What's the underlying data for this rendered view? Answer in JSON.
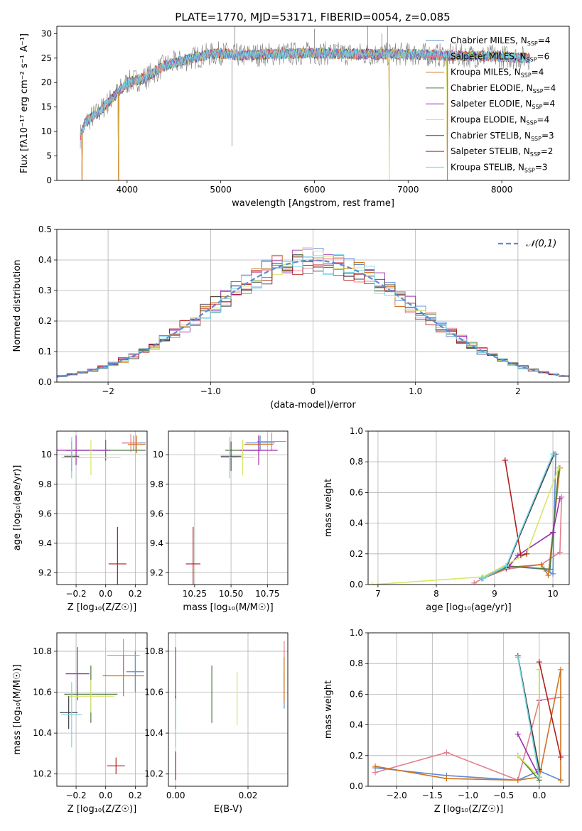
{
  "title": "PLATE=1770, MJD=53171, FIBERID=0054, z=0.085",
  "colors": {
    "Chabrier MILES": "#5b8bd6",
    "Salpeter MILES": "#e37f8c",
    "Kroupa MILES": "#d1731f",
    "Chabrier ELODIE": "#4f7a43",
    "Salpeter ELODIE": "#9b2fae",
    "Kroupa ELODIE": "#d8e66a",
    "Chabrier STELIB": "#404040",
    "Salpeter STELIB": "#b01e1e",
    "Kroupa STELIB": "#76d6e6",
    "grid": "#b0b0b0",
    "norm_curve": "#5b8bd6"
  },
  "chart_data": [
    {
      "id": "spectrum",
      "type": "line",
      "title": "PLATE=1770, MJD=53171, FIBERID=0054, z=0.085",
      "xlabel": "wavelength [Angstrom, rest frame]",
      "ylabel": "Flux [fλ10⁻¹⁷ erg cm⁻² s⁻¹ A⁻¹]",
      "xlim": [
        3250,
        8720
      ],
      "ylim": [
        0,
        31.5
      ],
      "xticks": [
        4000,
        5000,
        6000,
        7000,
        8000
      ],
      "yticks": [
        0,
        5,
        10,
        15,
        20,
        25,
        30
      ],
      "grid": false,
      "legend_position": "right",
      "legend": [
        {
          "model": "Chabrier MILES",
          "label": "Chabrier MILES, N",
          "sub": "SSP",
          "suffix": "=4"
        },
        {
          "model": "Salpeter MILES",
          "label": "Salpeter MILES, N",
          "sub": "SSP",
          "suffix": "=6"
        },
        {
          "model": "Kroupa MILES",
          "label": "Kroupa MILES, N",
          "sub": "SSP",
          "suffix": "=4"
        },
        {
          "model": "Chabrier ELODIE",
          "label": "Chabrier ELODIE, N",
          "sub": "SSP",
          "suffix": "=4"
        },
        {
          "model": "Salpeter ELODIE",
          "label": "Salpeter ELODIE, N",
          "sub": "SSP",
          "suffix": "=4"
        },
        {
          "model": "Kroupa ELODIE",
          "label": "Kroupa ELODIE, N",
          "sub": "SSP",
          "suffix": "=4"
        },
        {
          "model": "Chabrier STELIB",
          "label": "Chabrier STELIB, N",
          "sub": "SSP",
          "suffix": "=3"
        },
        {
          "model": "Salpeter STELIB",
          "label": "Salpeter STELIB, N",
          "sub": "SSP",
          "suffix": "=2"
        },
        {
          "model": "Kroupa STELIB",
          "label": "Kroupa STELIB, N",
          "sub": "SSP",
          "suffix": "=3"
        }
      ],
      "continuum": [
        [
          3500,
          9
        ],
        [
          3560,
          12
        ],
        [
          3700,
          14
        ],
        [
          3800,
          16
        ],
        [
          3900,
          18
        ],
        [
          4000,
          20
        ],
        [
          4200,
          21
        ],
        [
          4400,
          23.5
        ],
        [
          4600,
          24.5
        ],
        [
          4800,
          25.5
        ],
        [
          5000,
          26
        ],
        [
          5200,
          25.5
        ],
        [
          5500,
          25.8
        ],
        [
          6000,
          26
        ],
        [
          6500,
          25.8
        ],
        [
          7000,
          25.8
        ],
        [
          7500,
          25.5
        ],
        [
          8000,
          25.3
        ],
        [
          8300,
          25
        ]
      ],
      "drops": [
        [
          3520,
          0
        ],
        [
          3910,
          0
        ],
        [
          6800,
          0
        ],
        [
          7420,
          0
        ]
      ],
      "spikes": [
        [
          5150,
          31.5
        ],
        [
          5120,
          7
        ],
        [
          6000,
          31
        ],
        [
          6570,
          31.5
        ],
        [
          6720,
          30
        ],
        [
          6780,
          31.5
        ]
      ]
    },
    {
      "id": "residuals",
      "type": "histogram",
      "xlabel": "(data-model)/error",
      "ylabel": "Normed distribution",
      "xlim": [
        -2.5,
        2.5
      ],
      "ylim": [
        0,
        0.5
      ],
      "xticks": [
        -2,
        -1,
        0,
        1,
        2
      ],
      "yticks": [
        0.0,
        0.1,
        0.2,
        0.3,
        0.4,
        0.5
      ],
      "grid": true,
      "legend_position": "top-right",
      "curve_label": "𝒩(0,1)",
      "bin_width": 0.1
    },
    {
      "id": "age_vs_Z",
      "type": "errorbar",
      "xlabel": "Z [log₁₀(Z/Z☉)]",
      "ylabel": "age  [log₁₀(age/yr)]",
      "xlim": [
        -0.33,
        0.28
      ],
      "ylim": [
        9.12,
        10.16
      ],
      "xticks": [
        -0.2,
        0.0,
        0.2
      ],
      "xticklabels": [
        "−0.2",
        "0.0",
        "0.2"
      ],
      "yticks": [
        9.2,
        9.4,
        9.6,
        9.8,
        10.0
      ],
      "grid": true,
      "points": [
        {
          "model": "Chabrier MILES",
          "x": 0.19,
          "xerr": 0.08,
          "y": 10.08,
          "yerr": 0.05
        },
        {
          "model": "Salpeter MILES",
          "x": 0.17,
          "xerr": 0.06,
          "y": 10.08,
          "yerr": 0.06
        },
        {
          "model": "Kroupa MILES",
          "x": 0.21,
          "xerr": 0.06,
          "y": 10.07,
          "yerr": 0.06
        },
        {
          "model": "Chabrier ELODIE",
          "x": 0.0,
          "xerr": 0.27,
          "y": 10.03,
          "yerr": 0.07
        },
        {
          "model": "Salpeter ELODIE",
          "x": -0.2,
          "xerr": 0.23,
          "y": 10.03,
          "yerr": 0.1
        },
        {
          "model": "Kroupa ELODIE",
          "x": -0.1,
          "xerr": 0.2,
          "y": 9.98,
          "yerr": 0.12
        },
        {
          "model": "Chabrier STELIB",
          "x": -0.23,
          "xerr": 0.05,
          "y": 9.99,
          "yerr": 0.1
        },
        {
          "model": "Salpeter STELIB",
          "x": 0.08,
          "xerr": 0.06,
          "y": 9.26,
          "yerr": 0.25
        },
        {
          "model": "Kroupa STELIB",
          "x": -0.23,
          "xerr": 0.06,
          "y": 9.98,
          "yerr": 0.14
        }
      ]
    },
    {
      "id": "age_vs_mass",
      "type": "errorbar",
      "xlabel": "mass [log₁₀(M/M☉)]",
      "ylabel": "",
      "xlim": [
        10.07,
        10.89
      ],
      "ylim": [
        9.12,
        10.16
      ],
      "xticks": [
        10.25,
        10.5,
        10.75
      ],
      "xticklabels": [
        "10.25",
        "10.50",
        "10.75"
      ],
      "yticks": [
        9.2,
        9.4,
        9.6,
        9.8,
        10.0
      ],
      "grid": true,
      "points": [
        {
          "model": "Chabrier MILES",
          "x": 10.7,
          "xerr": 0.1,
          "y": 10.08,
          "yerr": 0.05
        },
        {
          "model": "Salpeter MILES",
          "x": 10.78,
          "xerr": 0.1,
          "y": 10.09,
          "yerr": 0.06
        },
        {
          "model": "Kroupa MILES",
          "x": 10.69,
          "xerr": 0.1,
          "y": 10.07,
          "yerr": 0.06
        },
        {
          "model": "Chabrier ELODIE",
          "x": 10.58,
          "xerr": 0.12,
          "y": 10.03,
          "yerr": 0.07
        },
        {
          "model": "Salpeter ELODIE",
          "x": 10.69,
          "xerr": 0.13,
          "y": 10.03,
          "yerr": 0.1
        },
        {
          "model": "Kroupa ELODIE",
          "x": 10.58,
          "xerr": 0.08,
          "y": 9.98,
          "yerr": 0.12
        },
        {
          "model": "Chabrier STELIB",
          "x": 10.5,
          "xerr": 0.07,
          "y": 9.99,
          "yerr": 0.1
        },
        {
          "model": "Salpeter STELIB",
          "x": 10.24,
          "xerr": 0.05,
          "y": 9.26,
          "yerr": 0.25
        },
        {
          "model": "Kroupa STELIB",
          "x": 10.49,
          "xerr": 0.06,
          "y": 9.98,
          "yerr": 0.14
        }
      ]
    },
    {
      "id": "weight_vs_age",
      "type": "line",
      "xlabel": "age  [log₁₀(age/yr)]",
      "ylabel": "mass weight",
      "xlim": [
        6.83,
        10.28
      ],
      "ylim": [
        0,
        1
      ],
      "xticks": [
        7,
        8,
        9,
        10
      ],
      "yticks": [
        0.0,
        0.2,
        0.4,
        0.6,
        0.8,
        1.0
      ],
      "grid": true,
      "series": [
        {
          "model": "Chabrier MILES",
          "x": [
            8.78,
            9.2,
            9.85,
            10.0,
            10.05
          ],
          "y": [
            0.04,
            0.12,
            0.1,
            0.07,
            0.85
          ]
        },
        {
          "model": "Salpeter MILES",
          "x": [
            8.65,
            8.8,
            9.2,
            9.8,
            10.12,
            10.15
          ],
          "y": [
            0.01,
            0.04,
            0.1,
            0.13,
            0.21,
            0.57
          ]
        },
        {
          "model": "Kroupa MILES",
          "x": [
            8.8,
            9.2,
            9.8,
            9.92,
            10.12
          ],
          "y": [
            0.04,
            0.11,
            0.13,
            0.06,
            0.76
          ]
        },
        {
          "model": "Chabrier ELODIE",
          "x": [
            8.8,
            9.25,
            9.95,
            10.1
          ],
          "y": [
            0.04,
            0.12,
            0.1,
            0.76
          ]
        },
        {
          "model": "Salpeter ELODIE",
          "x": [
            9.25,
            9.4,
            10.0,
            10.12
          ],
          "y": [
            0.12,
            0.19,
            0.34,
            0.56
          ]
        },
        {
          "model": "Kroupa ELODIE",
          "x": [
            6.9,
            8.8,
            9.55,
            10.1
          ],
          "y": [
            0.0,
            0.05,
            0.2,
            0.76
          ]
        },
        {
          "model": "Chabrier STELIB",
          "x": [
            9.2,
            10.02
          ],
          "y": [
            0.11,
            0.85
          ]
        },
        {
          "model": "Salpeter STELIB",
          "x": [
            9.18,
            9.45,
            9.55
          ],
          "y": [
            0.81,
            0.19,
            0.2
          ]
        },
        {
          "model": "Kroupa STELIB",
          "x": [
            8.8,
            9.2,
            10.0
          ],
          "y": [
            0.04,
            0.12,
            0.85
          ]
        }
      ]
    },
    {
      "id": "mass_vs_Z",
      "type": "errorbar",
      "xlabel": "Z [log₁₀(Z/Z☉)]",
      "ylabel": "mass [log₁₀(M/M☉)]",
      "xlim": [
        -0.33,
        0.28
      ],
      "ylim": [
        10.14,
        10.89
      ],
      "xticks": [
        -0.2,
        0.0,
        0.2
      ],
      "xticklabels": [
        "−0.2",
        "0.0",
        "0.2"
      ],
      "yticks": [
        10.2,
        10.4,
        10.6,
        10.8
      ],
      "grid": true,
      "points": [
        {
          "model": "Chabrier MILES",
          "x": 0.2,
          "xerr": 0.06,
          "y": 10.7,
          "yerr": 0.1
        },
        {
          "model": "Salpeter MILES",
          "x": 0.12,
          "xerr": 0.11,
          "y": 10.78,
          "yerr": 0.08
        },
        {
          "model": "Kroupa MILES",
          "x": 0.12,
          "xerr": 0.14,
          "y": 10.68,
          "yerr": 0.1
        },
        {
          "model": "Chabrier ELODIE",
          "x": -0.1,
          "xerr": 0.18,
          "y": 10.59,
          "yerr": 0.14
        },
        {
          "model": "Salpeter ELODIE",
          "x": -0.19,
          "xerr": 0.08,
          "y": 10.69,
          "yerr": 0.13
        },
        {
          "model": "Kroupa ELODIE",
          "x": -0.1,
          "xerr": 0.16,
          "y": 10.58,
          "yerr": 0.08
        },
        {
          "model": "Chabrier STELIB",
          "x": -0.25,
          "xerr": 0.06,
          "y": 10.5,
          "yerr": 0.08
        },
        {
          "model": "Salpeter STELIB",
          "x": 0.07,
          "xerr": 0.06,
          "y": 10.24,
          "yerr": 0.04
        },
        {
          "model": "Kroupa STELIB",
          "x": -0.23,
          "xerr": 0.07,
          "y": 10.49,
          "yerr": 0.16
        }
      ]
    },
    {
      "id": "mass_vs_EBV",
      "type": "errorbar",
      "xlabel": "E(B-V)",
      "ylabel": "",
      "xlim": [
        -0.002,
        0.031
      ],
      "ylim": [
        10.14,
        10.89
      ],
      "xticks": [
        0.0,
        0.02
      ],
      "xticklabels": [
        "0.00",
        "0.02"
      ],
      "yticks": [
        10.2,
        10.4,
        10.6,
        10.8
      ],
      "grid": true,
      "points": [
        {
          "model": "Chabrier MILES",
          "x": 0.03,
          "xerr": 0,
          "y": 10.61,
          "yerr": 0.09
        },
        {
          "model": "Salpeter MILES",
          "x": 0.03,
          "xerr": 0,
          "y": 10.72,
          "yerr": 0.13
        },
        {
          "model": "Kroupa MILES",
          "x": 0.03,
          "xerr": 0,
          "y": 10.66,
          "yerr": 0.11
        },
        {
          "model": "Chabrier ELODIE",
          "x": 0.01,
          "xerr": 0,
          "y": 10.59,
          "yerr": 0.14
        },
        {
          "model": "Salpeter ELODIE",
          "x": 0.0,
          "xerr": 0,
          "y": 10.69,
          "yerr": 0.13
        },
        {
          "model": "Kroupa ELODIE",
          "x": 0.017,
          "xerr": 0,
          "y": 10.57,
          "yerr": 0.13
        },
        {
          "model": "Chabrier STELIB",
          "x": 0.0,
          "xerr": 0,
          "y": 10.5,
          "yerr": 0.08
        },
        {
          "model": "Salpeter STELIB",
          "x": 0.0,
          "xerr": 0,
          "y": 10.24,
          "yerr": 0.07
        },
        {
          "model": "Kroupa STELIB",
          "x": 0.0,
          "xerr": 0,
          "y": 10.45,
          "yerr": 0.12
        }
      ]
    },
    {
      "id": "weight_vs_Z",
      "type": "line",
      "xlabel": "Z [log₁₀(Z/Z☉)]",
      "ylabel": "mass weight",
      "xlim": [
        -2.4,
        0.42
      ],
      "ylim": [
        0,
        1
      ],
      "xticks": [
        -2.0,
        -1.5,
        -1.0,
        -0.5,
        0.0
      ],
      "xticklabels": [
        "−2.0",
        "−1.5",
        "−1.0",
        "−0.5",
        "0.0"
      ],
      "yticks": [
        0.0,
        0.2,
        0.4,
        0.6,
        0.8,
        1.0
      ],
      "grid": true,
      "series": [
        {
          "model": "Chabrier MILES",
          "x": [
            -2.3,
            -1.3,
            -0.3,
            0.0,
            0.3
          ],
          "y": [
            0.12,
            0.07,
            0.04,
            0.1,
            0.04
          ]
        },
        {
          "model": "Salpeter MILES",
          "x": [
            -2.3,
            -1.3,
            -0.3,
            0.0,
            0.3
          ],
          "y": [
            0.09,
            0.22,
            0.04,
            0.56,
            0.58
          ]
        },
        {
          "model": "Kroupa MILES",
          "x": [
            -2.3,
            -1.3,
            -0.3,
            0.0,
            0.3,
            0.3
          ],
          "y": [
            0.13,
            0.05,
            0.04,
            0.06,
            0.76,
            0.04
          ]
        },
        {
          "model": "Chabrier ELODIE",
          "x": [
            -0.3,
            0.0,
            0.0
          ],
          "y": [
            0.2,
            0.04,
            0.76
          ]
        },
        {
          "model": "Salpeter ELODIE",
          "x": [
            -0.3,
            0.0,
            0.0
          ],
          "y": [
            0.34,
            0.06,
            0.56
          ]
        },
        {
          "model": "Kroupa ELODIE",
          "x": [
            -0.3,
            0.0,
            0.0
          ],
          "y": [
            0.2,
            0.06,
            0.76
          ]
        },
        {
          "model": "Chabrier STELIB",
          "x": [
            -0.3,
            0.0
          ],
          "y": [
            0.85,
            0.11
          ]
        },
        {
          "model": "Salpeter STELIB",
          "x": [
            0.0,
            0.3
          ],
          "y": [
            0.81,
            0.19
          ]
        },
        {
          "model": "Kroupa STELIB",
          "x": [
            -0.3,
            0.0
          ],
          "y": [
            0.84,
            0.06
          ]
        }
      ]
    }
  ]
}
